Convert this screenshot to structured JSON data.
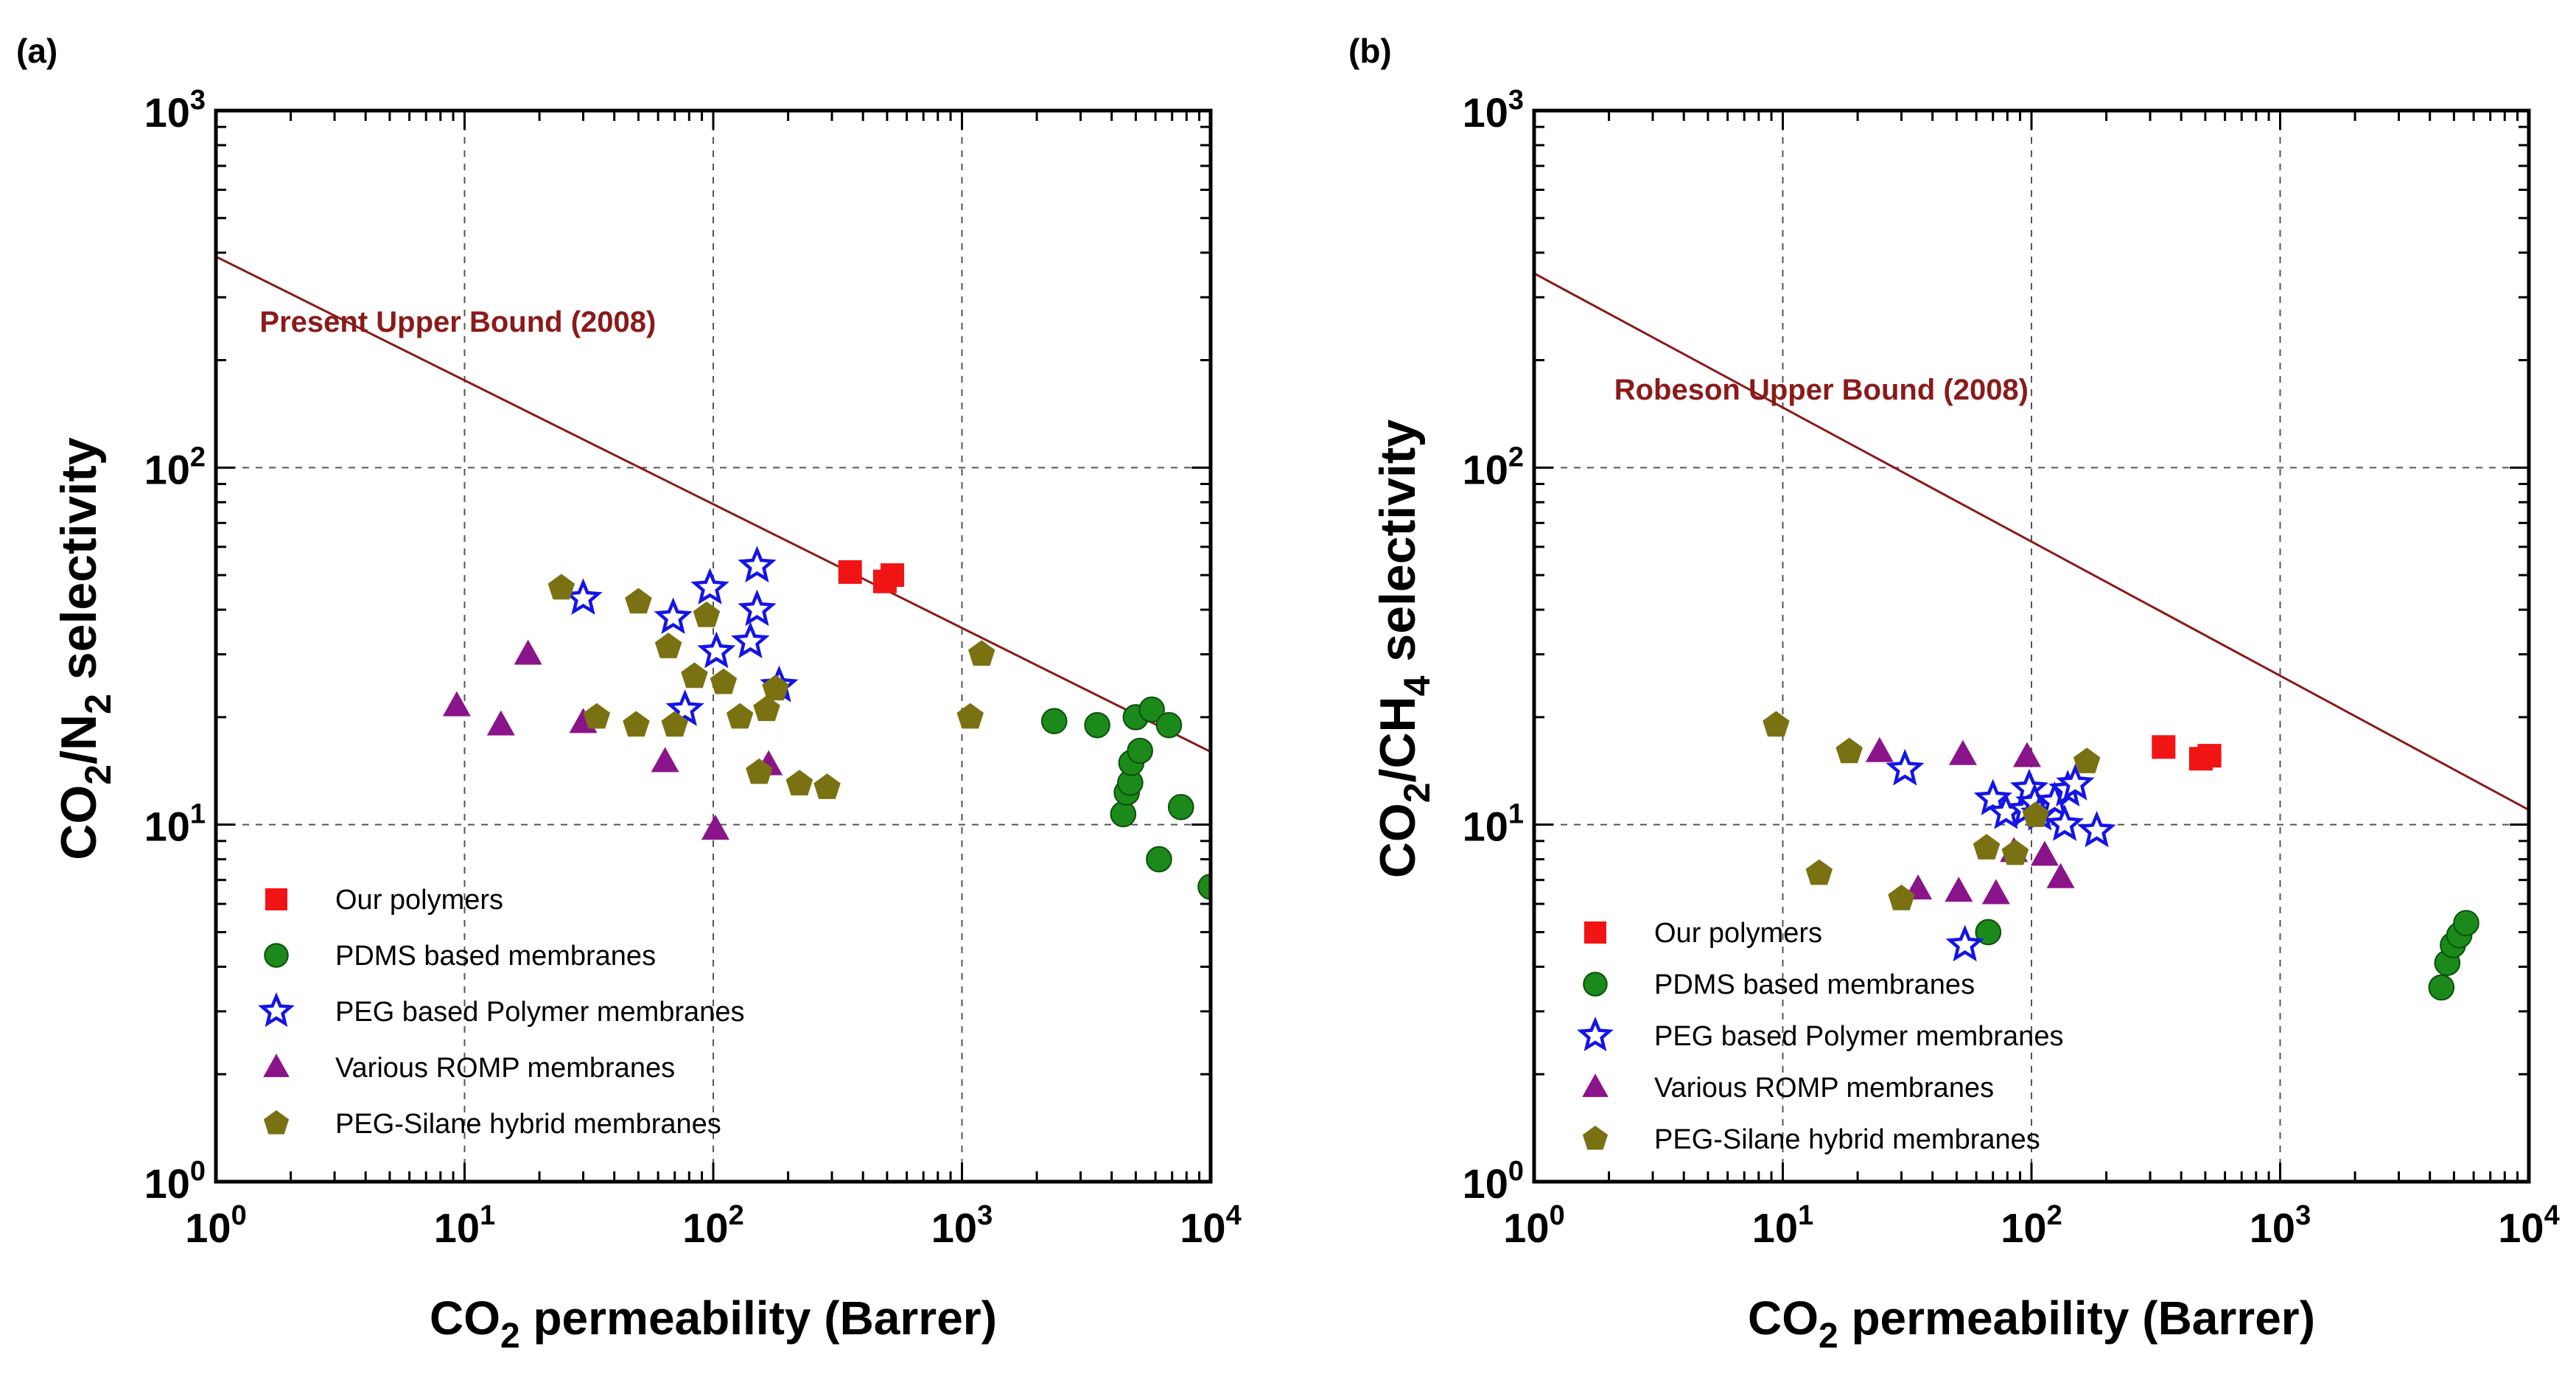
{
  "chart_data": [
    {
      "panel_label": "(a)",
      "type": "scatter",
      "xscale": "log",
      "yscale": "log",
      "xlim": [
        1,
        10000
      ],
      "ylim": [
        1,
        1000
      ],
      "xlabel": "CO2 permeability (Barrer)",
      "ylabel": "CO2/N2 selectivity",
      "xlabel_parts": {
        "pre": "CO",
        "sub": "2",
        "post": " permeability (Barrer)"
      },
      "ylabel_parts": [
        {
          "t": "CO",
          "sub": false
        },
        {
          "t": "2",
          "sub": true
        },
        {
          "t": "/N",
          "sub": false
        },
        {
          "t": "2",
          "sub": true
        },
        {
          "t": " selectivity",
          "sub": false
        }
      ],
      "x_tick_labels": [
        {
          "v": 1,
          "base": "10",
          "exp": "0"
        },
        {
          "v": 10,
          "base": "10",
          "exp": "1"
        },
        {
          "v": 100,
          "base": "10",
          "exp": "2"
        },
        {
          "v": 1000,
          "base": "10",
          "exp": "3"
        },
        {
          "v": 10000,
          "base": "10",
          "exp": "4"
        }
      ],
      "y_tick_labels": [
        {
          "v": 1,
          "base": "10",
          "exp": "0"
        },
        {
          "v": 10,
          "base": "10",
          "exp": "1"
        },
        {
          "v": 100,
          "base": "10",
          "exp": "2"
        },
        {
          "v": 1000,
          "base": "10",
          "exp": "3"
        }
      ],
      "grid": "dashed at decades",
      "legend_position": "bottom-left",
      "upper_bound": {
        "label": "Present Upper Bound (2008)",
        "x": [
          1,
          10000
        ],
        "y": [
          390,
          16
        ],
        "label_at": [
          1.5,
          240
        ]
      },
      "series": [
        {
          "name": "Our polymers",
          "marker": "square",
          "color": "#f01414",
          "points": [
            [
              355,
              51
            ],
            [
              490,
              48
            ],
            [
              525,
              50
            ]
          ]
        },
        {
          "name": "PDMS based membranes",
          "marker": "sphere",
          "color": "#1b8a1b",
          "points": [
            [
              2350,
              19.5
            ],
            [
              3500,
              19
            ],
            [
              4450,
              10.7
            ],
            [
              4600,
              12.3
            ],
            [
              4750,
              13.1
            ],
            [
              4800,
              14.9
            ],
            [
              5000,
              20
            ],
            [
              5200,
              16.1
            ],
            [
              5800,
              21
            ],
            [
              6200,
              8
            ],
            [
              6800,
              19
            ],
            [
              7600,
              11.2
            ],
            [
              10000,
              6.7
            ]
          ]
        },
        {
          "name": "PEG based Polymer membranes",
          "marker": "star",
          "color": "#1414e6",
          "points": [
            [
              30,
              43
            ],
            [
              69,
              38
            ],
            [
              77,
              21
            ],
            [
              97,
              46
            ],
            [
              103,
              30.5
            ],
            [
              141,
              32.5
            ],
            [
              150,
              40
            ],
            [
              150,
              53
            ],
            [
              184,
              24.5
            ]
          ]
        },
        {
          "name": "Various ROMP membranes",
          "marker": "triangle",
          "color": "#8a148a",
          "points": [
            [
              9.3,
              21.5
            ],
            [
              14,
              19
            ],
            [
              18,
              30
            ],
            [
              30,
              19.3
            ],
            [
              64,
              15
            ],
            [
              102,
              9.7
            ],
            [
              167,
              14.7
            ]
          ]
        },
        {
          "name": "PEG-Silane hybrid membranes",
          "marker": "pentagon",
          "color": "#7a7212",
          "points": [
            [
              24.5,
              46
            ],
            [
              34,
              20
            ],
            [
              49,
              19
            ],
            [
              50,
              42
            ],
            [
              66,
              31.5
            ],
            [
              70,
              19
            ],
            [
              84,
              26
            ],
            [
              94,
              38.5
            ],
            [
              110,
              25
            ],
            [
              128,
              20
            ],
            [
              153,
              14
            ],
            [
              164,
              21
            ],
            [
              178,
              24
            ],
            [
              222,
              13
            ],
            [
              287,
              12.7
            ],
            [
              1080,
              20
            ],
            [
              1200,
              30
            ]
          ]
        }
      ]
    },
    {
      "panel_label": "(b)",
      "type": "scatter",
      "xscale": "log",
      "yscale": "log",
      "xlim": [
        1,
        10000
      ],
      "ylim": [
        1,
        1000
      ],
      "xlabel": "CO2 permeability (Barrer)",
      "ylabel": "CO2/CH4 selectivity",
      "xlabel_parts": {
        "pre": "CO",
        "sub": "2",
        "post": " permeability (Barrer)"
      },
      "ylabel_parts": [
        {
          "t": "CO",
          "sub": false
        },
        {
          "t": "2",
          "sub": true
        },
        {
          "t": "/CH",
          "sub": false
        },
        {
          "t": "4",
          "sub": true
        },
        {
          "t": "  selectivity",
          "sub": false
        }
      ],
      "x_tick_labels": [
        {
          "v": 1,
          "base": "10",
          "exp": "0"
        },
        {
          "v": 10,
          "base": "10",
          "exp": "1"
        },
        {
          "v": 100,
          "base": "10",
          "exp": "2"
        },
        {
          "v": 1000,
          "base": "10",
          "exp": "3"
        },
        {
          "v": 10000,
          "base": "10",
          "exp": "4"
        }
      ],
      "y_tick_labels": [
        {
          "v": 1,
          "base": "10",
          "exp": "0"
        },
        {
          "v": 10,
          "base": "10",
          "exp": "1"
        },
        {
          "v": 100,
          "base": "10",
          "exp": "2"
        },
        {
          "v": 1000,
          "base": "10",
          "exp": "3"
        }
      ],
      "grid": "dashed at decades",
      "legend_position": "bottom-left",
      "upper_bound": {
        "label": "Robeson Upper Bound (2008)",
        "x": [
          1,
          10000
        ],
        "y": [
          350,
          11
        ],
        "label_at": [
          2.1,
          155
        ]
      },
      "series": [
        {
          "name": "Our polymers",
          "marker": "square",
          "color": "#f01414",
          "points": [
            [
              340,
              16.5
            ],
            [
              480,
              15.3
            ],
            [
              520,
              15.6
            ]
          ]
        },
        {
          "name": "PDMS based membranes",
          "marker": "sphere",
          "color": "#1b8a1b",
          "points": [
            [
              67,
              5
            ],
            [
              4450,
              3.5
            ],
            [
              4700,
              4.1
            ],
            [
              4950,
              4.6
            ],
            [
              5250,
              4.9
            ],
            [
              5600,
              5.3
            ]
          ]
        },
        {
          "name": "PEG based Polymer membranes",
          "marker": "star",
          "color": "#1414e6",
          "points": [
            [
              31,
              14.3
            ],
            [
              54,
              4.6
            ],
            [
              70,
              11.8
            ],
            [
              79,
              10.8
            ],
            [
              95,
              11
            ],
            [
              98,
              12.6
            ],
            [
              103,
              11.5
            ],
            [
              108,
              10.7
            ],
            [
              124,
              11.6
            ],
            [
              136,
              10
            ],
            [
              140,
              12.5
            ],
            [
              150,
              13
            ],
            [
              183,
              9.6
            ]
          ]
        },
        {
          "name": "Various ROMP membranes",
          "marker": "triangle",
          "color": "#8a148a",
          "points": [
            [
              24.5,
              16
            ],
            [
              35,
              6.6
            ],
            [
              51,
              6.5
            ],
            [
              53,
              15.7
            ],
            [
              72,
              6.4
            ],
            [
              85,
              8.4
            ],
            [
              96,
              15.5
            ],
            [
              113,
              8.2
            ],
            [
              131,
              7.1
            ]
          ]
        },
        {
          "name": "PEG-Silane hybrid membranes",
          "marker": "pentagon",
          "color": "#7a7212",
          "points": [
            [
              9.4,
              19
            ],
            [
              14,
              7.3
            ],
            [
              18.5,
              16
            ],
            [
              30,
              6.2
            ],
            [
              66,
              8.6
            ],
            [
              86,
              8.3
            ],
            [
              104,
              10.6
            ],
            [
              167,
              15
            ]
          ]
        }
      ]
    }
  ]
}
